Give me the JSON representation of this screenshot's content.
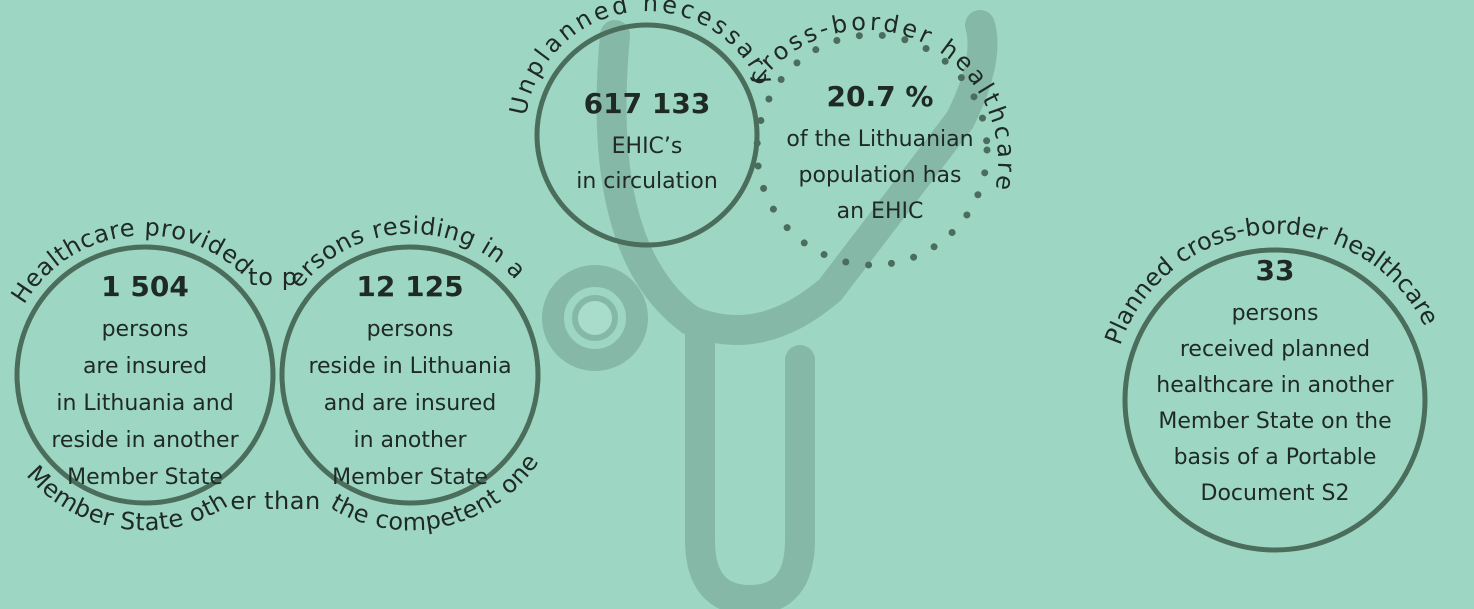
{
  "ehic": {
    "arc_label": "Unplanned necessary cross-border healthcare",
    "cards": [
      {
        "value": "617 133",
        "lines": [
          "EHIC’s",
          "in circulation"
        ]
      },
      {
        "value": "20.7 %",
        "lines": [
          "of the Lithuanian",
          "population has",
          "an EHIC"
        ]
      }
    ]
  },
  "residence": {
    "arc_top": "Healthcare provided to persons residing in a",
    "arc_bottom": "Member State other than the competent one",
    "cards": [
      {
        "value": "1 504",
        "lines": [
          "persons",
          "are insured",
          "in Lithuania and",
          "reside in another",
          "Member State"
        ]
      },
      {
        "value": "12 125",
        "lines": [
          "persons",
          "reside in Lithuania",
          "and are insured",
          "in another",
          "Member State"
        ]
      }
    ]
  },
  "planned": {
    "arc_label": "Planned cross-border healthcare",
    "value": "33",
    "lines": [
      "persons",
      "received planned",
      "healthcare in another",
      "Member State on the",
      "basis of a Portable",
      "Document S2"
    ]
  }
}
